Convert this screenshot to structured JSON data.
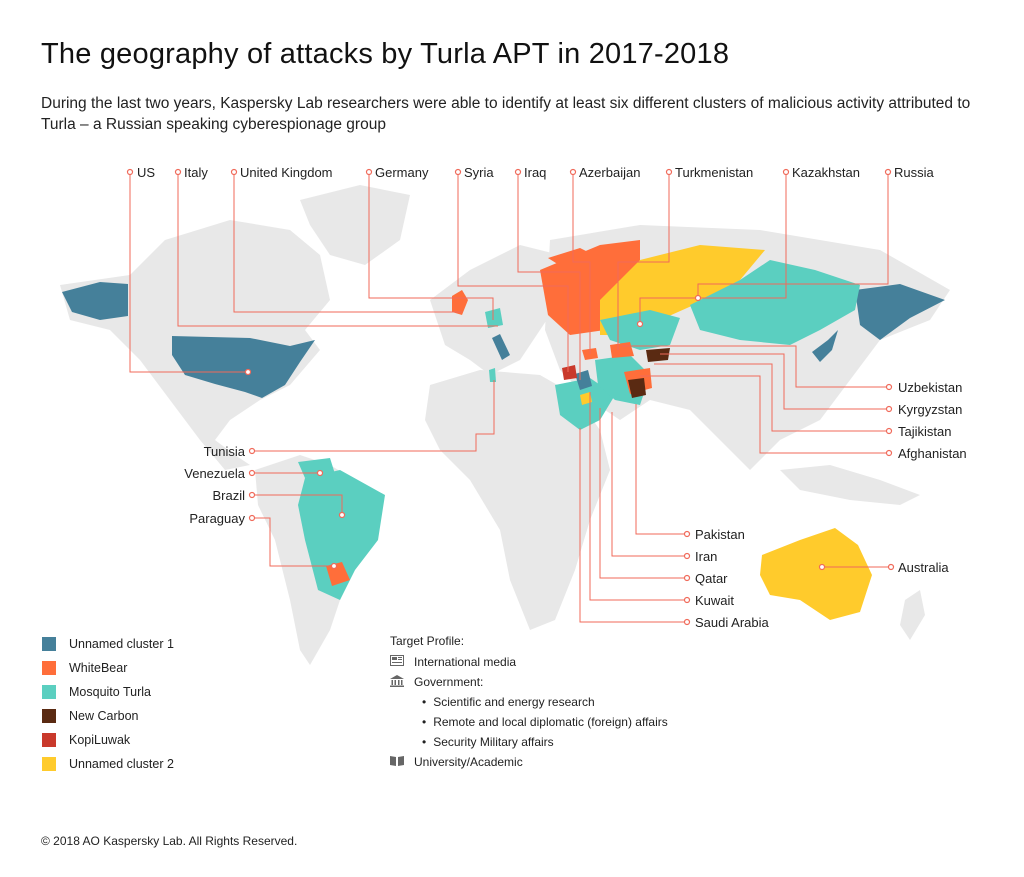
{
  "title": "The geography of attacks by Turla APT in 2017-2018",
  "subtitle": "During the last two years, Kaspersky Lab researchers were able to identify at least six different clusters of malicious activity attributed to Turla – a Russian speaking cyberespionage group",
  "top_labels": [
    "US",
    "Italy",
    "United Kingdom",
    "Germany",
    "Syria",
    "Iraq",
    "Azerbaijan",
    "Turkmenistan",
    "Kazakhstan",
    "Russia"
  ],
  "right_labels": [
    "Uzbekistan",
    "Kyrgyzstan",
    "Tajikistan",
    "Afghanistan"
  ],
  "left_labels": [
    "Tunisia",
    "Venezuela",
    "Brazil",
    "Paraguay"
  ],
  "bottom_labels": [
    "Pakistan",
    "Iran",
    "Qatar",
    "Kuwait",
    "Saudi Arabia"
  ],
  "australia_label": "Australia",
  "legend": [
    {
      "name": "Unnamed cluster 1",
      "color": "#45809a"
    },
    {
      "name": "WhiteBear",
      "color": "#ff6e3a"
    },
    {
      "name": "Mosquito Turla",
      "color": "#5bcfc0"
    },
    {
      "name": "New Carbon",
      "color": "#5a2a12"
    },
    {
      "name": "KopiLuwak",
      "color": "#c9392b"
    },
    {
      "name": "Unnamed cluster 2",
      "color": "#ffcb2c"
    }
  ],
  "profile": {
    "heading": "Target Profile:",
    "media": "International media",
    "government": "Government:",
    "gov_items": [
      "Scientific and energy research",
      "Remote and local diplomatic (foreign) affairs",
      "Security Military affairs"
    ],
    "academic": "University/Academic",
    "icons": [
      "newspaper-icon",
      "government-building-icon",
      "book-icon"
    ]
  },
  "footer": "© 2018 AO Kaspersky Lab. All Rights Reserved.",
  "colors": {
    "land": "#e8e8e8",
    "leader": "#f06a5a"
  }
}
